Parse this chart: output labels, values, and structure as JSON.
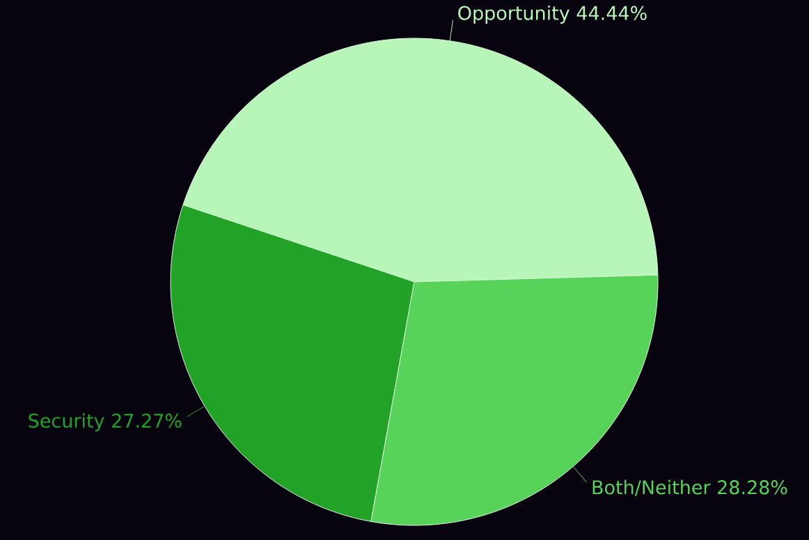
{
  "chart_data": {
    "type": "pie",
    "categories": [
      "Opportunity",
      "Security",
      "Both/Neither"
    ],
    "values": [
      44.44,
      27.27,
      28.28
    ],
    "value_labels": [
      "44.44%",
      "27.27%",
      "28.28%"
    ],
    "colors": [
      "#b8f5b8",
      "#22a328",
      "#57d35a"
    ]
  }
}
